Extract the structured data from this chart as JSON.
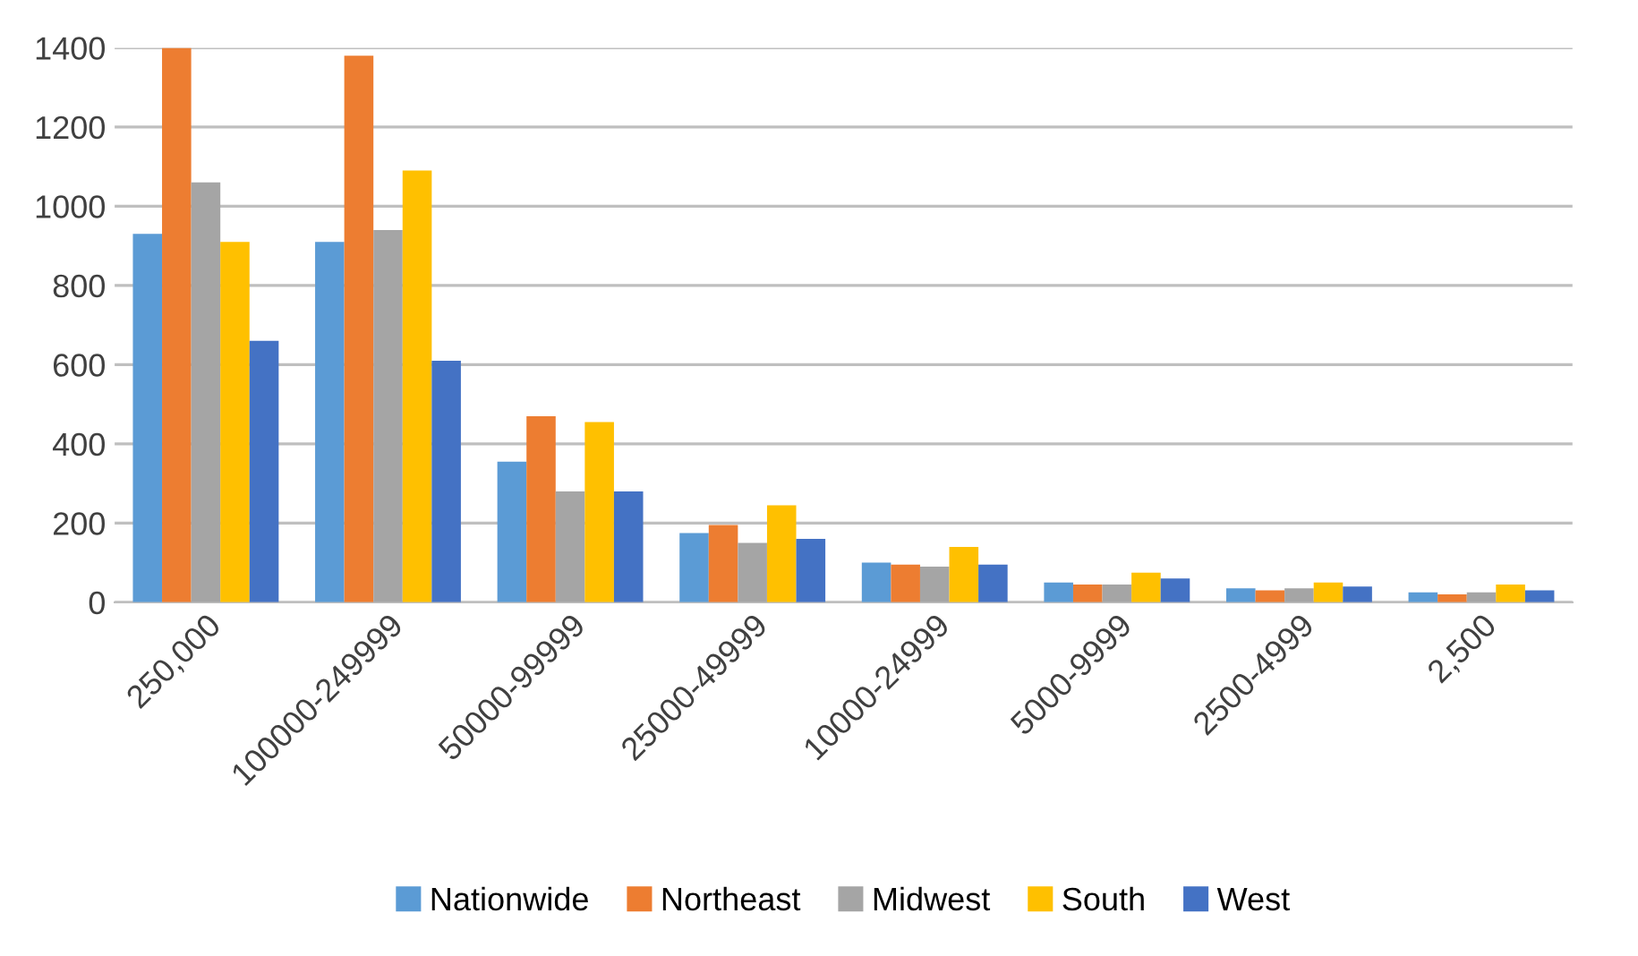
{
  "chart_data": {
    "type": "bar",
    "categories": [
      "250,000",
      "100000-249999",
      "50000-99999",
      "25000-49999",
      "10000-24999",
      "5000-9999",
      "2500-4999",
      "2,500"
    ],
    "series": [
      {
        "name": "Nationwide",
        "color": "#5b9bd5",
        "values": [
          930,
          910,
          355,
          175,
          100,
          50,
          35,
          25
        ]
      },
      {
        "name": "Northeast",
        "color": "#ed7d31",
        "values": [
          1400,
          1380,
          470,
          195,
          95,
          45,
          30,
          20
        ]
      },
      {
        "name": "Midwest",
        "color": "#a5a5a5",
        "values": [
          1060,
          940,
          280,
          150,
          90,
          45,
          35,
          25
        ]
      },
      {
        "name": "South",
        "color": "#ffc000",
        "values": [
          910,
          1090,
          455,
          245,
          140,
          75,
          50,
          45
        ]
      },
      {
        "name": "West",
        "color": "#4472c4",
        "values": [
          660,
          610,
          280,
          160,
          95,
          60,
          40,
          30
        ]
      }
    ],
    "ylim": [
      0,
      1400
    ],
    "yticks": [
      0,
      200,
      400,
      600,
      800,
      1000,
      1200,
      1400
    ],
    "grid": "y",
    "legend": "bottom"
  }
}
